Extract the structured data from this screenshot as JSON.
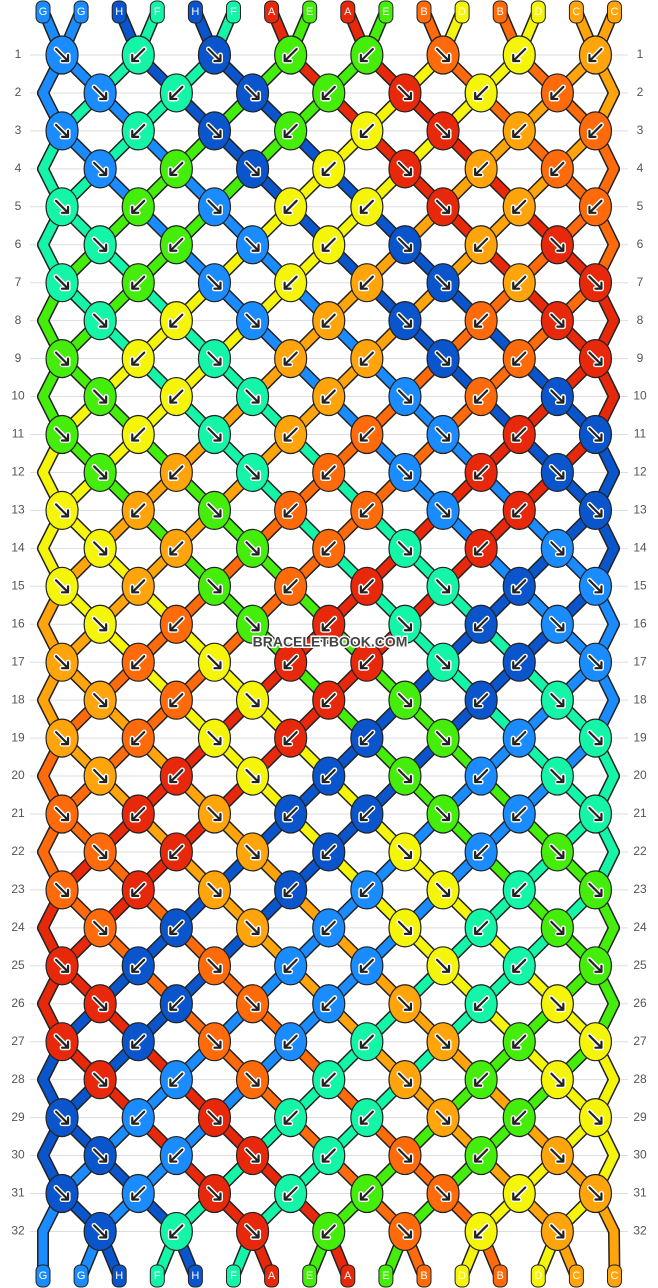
{
  "strings_top": [
    "G",
    "G",
    "H",
    "F",
    "H",
    "F",
    "A",
    "E",
    "A",
    "E",
    "B",
    "D",
    "B",
    "D",
    "C",
    "C"
  ],
  "strings_bottom": [
    "G",
    "G",
    "H",
    "F",
    "H",
    "F",
    "A",
    "E",
    "A",
    "E",
    "B",
    "D",
    "B",
    "D",
    "C",
    "C"
  ],
  "colors": {
    "G": "#1a8cff",
    "H": "#0a55cc",
    "F": "#14f5a8",
    "A": "#e8280a",
    "E": "#44ee0a",
    "B": "#ff6a0a",
    "D": "#f5f50a",
    "C": "#ffa40a"
  },
  "rows": [
    {
      "label": "1",
      "knots": "GFHEEBDC",
      "dirs": "RLRLLRLL"
    },
    {
      "label": "2",
      "knots": "GFHEADB",
      "dirs": "RLRLRLL"
    },
    {
      "label": "3",
      "knots": "GFHEDACB",
      "dirs": "RLRLLRLL"
    },
    {
      "label": "4",
      "knots": "GEHDACB",
      "dirs": "RLRLRLL"
    },
    {
      "label": "5",
      "knots": "FEGDDACB",
      "dirs": "RLRLLRLL"
    },
    {
      "label": "6",
      "knots": "FEGDHCA",
      "dirs": "RLRLRLR"
    },
    {
      "label": "7",
      "knots": "FEGDCHCA",
      "dirs": "RLRLLRLR"
    },
    {
      "label": "8",
      "knots": "FDGCHBA",
      "dirs": "RLRLRLR"
    },
    {
      "label": "9",
      "knots": "EDFCCHBA",
      "dirs": "RLRLLRLR"
    },
    {
      "label": "10",
      "knots": "EDFCGBH",
      "dirs": "RLRLRLR"
    },
    {
      "label": "11",
      "knots": "EDFCBGAH",
      "dirs": "RLRLLRLR"
    },
    {
      "label": "12",
      "knots": "ECFBGAH",
      "dirs": "RLRLRLR"
    },
    {
      "label": "13",
      "knots": "DCEBBGAH",
      "dirs": "RLRLLRLR"
    },
    {
      "label": "14",
      "knots": "DCEBFAG",
      "dirs": "RLRLRLR"
    },
    {
      "label": "15",
      "knots": "DCEBAFHG",
      "dirs": "RLRLLRLR"
    },
    {
      "label": "16",
      "knots": "DBEAFHG",
      "dirs": "RLRLRLR"
    },
    {
      "label": "17",
      "knots": "CBDAAFHG",
      "dirs": "RLRLLRLR"
    },
    {
      "label": "18",
      "knots": "CBDAEHF",
      "dirs": "RLRLRLR"
    },
    {
      "label": "19",
      "knots": "CBDAHEGF",
      "dirs": "RLRLLRLR"
    },
    {
      "label": "20",
      "knots": "CADHEGF",
      "dirs": "RLRLRLR"
    },
    {
      "label": "21",
      "knots": "BACHHEGF",
      "dirs": "RLRLLRLR"
    },
    {
      "label": "22",
      "knots": "BACHDGE",
      "dirs": "RLRLRLR"
    },
    {
      "label": "23",
      "knots": "BACHGDFE",
      "dirs": "RLRLLRLR"
    },
    {
      "label": "24",
      "knots": "BHCGDFE",
      "dirs": "RLRLRLR"
    },
    {
      "label": "25",
      "knots": "AHBGGDFE",
      "dirs": "RLRLLRLR"
    },
    {
      "label": "26",
      "knots": "AHBGCFD",
      "dirs": "RLRLRLR"
    },
    {
      "label": "27",
      "knots": "AHBGFCED",
      "dirs": "RLRLLRLR"
    },
    {
      "label": "28",
      "knots": "AGBFCED",
      "dirs": "RLRLRLR"
    },
    {
      "label": "29",
      "knots": "HGAFFCED",
      "dirs": "RLRLLRLR"
    },
    {
      "label": "30",
      "knots": "HGAFBEC",
      "dirs": "RLRLRLR"
    },
    {
      "label": "31",
      "knots": "HGAFEBDC",
      "dirs": "RLRLLRLR"
    },
    {
      "label": "32",
      "knots": "HFAEBDC",
      "dirs": "RLRLRLR"
    }
  ],
  "watermark": "BRACELETBOOK.COM"
}
